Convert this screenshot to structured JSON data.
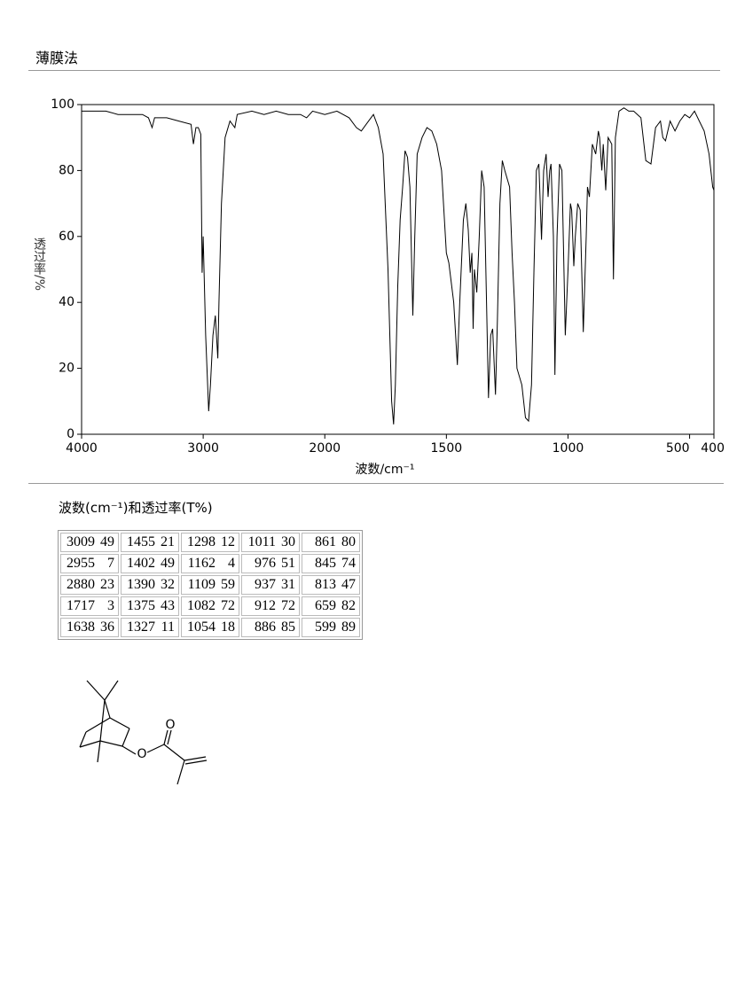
{
  "header": {
    "title": "薄膜法"
  },
  "chart_data": {
    "type": "line",
    "ylabel": "透过率/%",
    "xlabel": "波数/cm⁻¹",
    "xlim": [
      4000,
      400
    ],
    "ylim": [
      0,
      100
    ],
    "xscale": "piecewise",
    "xbreak": 2000,
    "xticks": [
      4000,
      3000,
      2000,
      1500,
      1000,
      500,
      400
    ],
    "yticks": [
      0,
      20,
      40,
      60,
      80,
      100
    ],
    "color": "#000000",
    "x": [
      4000,
      3900,
      3800,
      3700,
      3600,
      3500,
      3450,
      3420,
      3400,
      3350,
      3300,
      3200,
      3100,
      3080,
      3060,
      3040,
      3020,
      3009,
      3000,
      2980,
      2955,
      2940,
      2920,
      2900,
      2880,
      2870,
      2850,
      2820,
      2780,
      2740,
      2720,
      2600,
      2500,
      2400,
      2300,
      2200,
      2150,
      2100,
      2000,
      1950,
      1900,
      1870,
      1850,
      1820,
      1800,
      1780,
      1760,
      1740,
      1725,
      1717,
      1710,
      1700,
      1690,
      1680,
      1670,
      1660,
      1650,
      1638,
      1630,
      1620,
      1600,
      1580,
      1560,
      1540,
      1520,
      1500,
      1490,
      1470,
      1455,
      1445,
      1430,
      1420,
      1410,
      1402,
      1395,
      1390,
      1385,
      1375,
      1365,
      1355,
      1345,
      1335,
      1327,
      1318,
      1310,
      1298,
      1290,
      1280,
      1270,
      1260,
      1240,
      1230,
      1220,
      1210,
      1190,
      1175,
      1162,
      1150,
      1140,
      1130,
      1120,
      1109,
      1100,
      1090,
      1082,
      1075,
      1070,
      1060,
      1054,
      1045,
      1035,
      1025,
      1011,
      1000,
      990,
      985,
      976,
      970,
      960,
      950,
      937,
      925,
      920,
      912,
      900,
      886,
      875,
      870,
      861,
      855,
      845,
      835,
      820,
      813,
      805,
      790,
      770,
      750,
      730,
      700,
      680,
      659,
      640,
      620,
      610,
      599,
      580,
      560,
      540,
      520,
      500,
      480,
      460,
      440,
      420,
      405,
      400
    ],
    "values": [
      98,
      98,
      98,
      97,
      97,
      97,
      96,
      93,
      96,
      96,
      96,
      95,
      94,
      88,
      93,
      93,
      91,
      49,
      60,
      30,
      7,
      15,
      30,
      36,
      23,
      40,
      70,
      90,
      95,
      93,
      97,
      98,
      97,
      98,
      97,
      97,
      96,
      98,
      97,
      98,
      96,
      93,
      92,
      95,
      97,
      93,
      85,
      50,
      10,
      3,
      15,
      45,
      65,
      75,
      86,
      84,
      75,
      36,
      60,
      85,
      90,
      93,
      92,
      88,
      80,
      55,
      52,
      40,
      21,
      40,
      65,
      70,
      62,
      49,
      55,
      32,
      50,
      43,
      60,
      80,
      75,
      40,
      11,
      30,
      32,
      12,
      35,
      70,
      83,
      80,
      75,
      55,
      40,
      20,
      15,
      5,
      4,
      15,
      50,
      80,
      82,
      59,
      80,
      85,
      72,
      80,
      82,
      60,
      18,
      60,
      82,
      80,
      30,
      50,
      70,
      68,
      51,
      60,
      70,
      68,
      31,
      60,
      75,
      72,
      88,
      85,
      92,
      90,
      80,
      88,
      74,
      90,
      88,
      47,
      90,
      98,
      99,
      98,
      98,
      96,
      83,
      82,
      93,
      95,
      90,
      89,
      95,
      92,
      95,
      97,
      96,
      98,
      95,
      92,
      85,
      75,
      74
    ]
  },
  "table": {
    "caption": "波数(cm⁻¹)和透过率(T%)",
    "groups": [
      [
        [
          3009,
          49
        ],
        [
          2955,
          7
        ],
        [
          2880,
          23
        ],
        [
          1717,
          3
        ],
        [
          1638,
          36
        ]
      ],
      [
        [
          1455,
          21
        ],
        [
          1402,
          49
        ],
        [
          1390,
          32
        ],
        [
          1375,
          43
        ],
        [
          1327,
          11
        ]
      ],
      [
        [
          1298,
          12
        ],
        [
          1162,
          4
        ],
        [
          1109,
          59
        ],
        [
          1082,
          72
        ],
        [
          1054,
          18
        ]
      ],
      [
        [
          1011,
          30
        ],
        [
          976,
          51
        ],
        [
          937,
          31
        ],
        [
          912,
          72
        ],
        [
          886,
          85
        ]
      ],
      [
        [
          861,
          80
        ],
        [
          845,
          74
        ],
        [
          813,
          47
        ],
        [
          659,
          82
        ],
        [
          599,
          89
        ]
      ]
    ]
  },
  "structure": {
    "atoms": [
      "O",
      "O"
    ]
  }
}
